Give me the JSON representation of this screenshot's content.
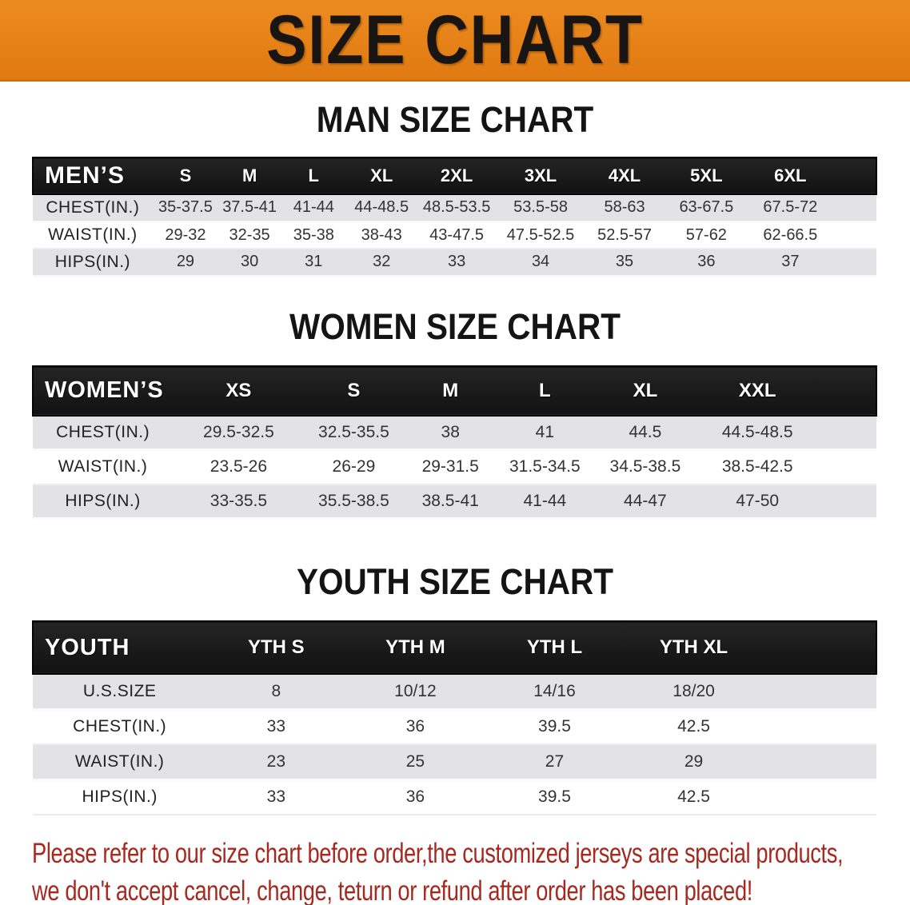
{
  "banner": {
    "title": "SIZE CHART"
  },
  "colors": {
    "banner_orange": "#e8821a",
    "header_band_black": "#1a1a1a",
    "row_stripe_gray": "#e3e3e5",
    "notice_red": "#a5291f"
  },
  "sections": [
    {
      "heading": "MAN SIZE CHART",
      "table": {
        "header_label": "MEN’S",
        "columns": [
          "S",
          "M",
          "L",
          "XL",
          "2XL",
          "3XL",
          "4XL",
          "5XL",
          "6XL"
        ],
        "rows": [
          {
            "label": "CHEST(IN.)",
            "values": [
              "35-37.5",
              "37.5-41",
              "41-44",
              "44-48.5",
              "48.5-53.5",
              "53.5-58",
              "58-63",
              "63-67.5",
              "67.5-72"
            ]
          },
          {
            "label": "WAIST(IN.)",
            "values": [
              "29-32",
              "32-35",
              "35-38",
              "38-43",
              "43-47.5",
              "47.5-52.5",
              "52.5-57",
              "57-62",
              "62-66.5"
            ]
          },
          {
            "label": "HIPS(IN.)",
            "values": [
              "29",
              "30",
              "31",
              "32",
              "33",
              "34",
              "35",
              "36",
              "37"
            ]
          }
        ]
      }
    },
    {
      "heading": "WOMEN SIZE CHART",
      "table": {
        "header_label": "WOMEN’S",
        "columns": [
          "XS",
          "S",
          "M",
          "L",
          "XL",
          "XXL"
        ],
        "rows": [
          {
            "label": "CHEST(IN.)",
            "values": [
              "29.5-32.5",
              "32.5-35.5",
              "38",
              "41",
              "44.5",
              "44.5-48.5"
            ]
          },
          {
            "label": "WAIST(IN.)",
            "values": [
              "23.5-26",
              "26-29",
              "29-31.5",
              "31.5-34.5",
              "34.5-38.5",
              "38.5-42.5"
            ]
          },
          {
            "label": "HIPS(IN.)",
            "values": [
              "33-35.5",
              "35.5-38.5",
              "38.5-41",
              "41-44",
              "44-47",
              "47-50"
            ]
          }
        ]
      }
    },
    {
      "heading": "YOUTH SIZE CHART",
      "table": {
        "header_label": "YOUTH",
        "columns": [
          "YTH S",
          "YTH M",
          "YTH L",
          "YTH XL"
        ],
        "rows": [
          {
            "label": "U.S.SIZE",
            "values": [
              "8",
              "10/12",
              "14/16",
              "18/20"
            ]
          },
          {
            "label": "CHEST(IN.)",
            "values": [
              "33",
              "36",
              "39.5",
              "42.5"
            ]
          },
          {
            "label": "WAIST(IN.)",
            "values": [
              "23",
              "25",
              "27",
              "29"
            ]
          },
          {
            "label": "HIPS(IN.)",
            "values": [
              "33",
              "36",
              "39.5",
              "42.5"
            ]
          }
        ]
      }
    }
  ],
  "footer": {
    "line1": "Please refer to our size chart before order,the customized jerseys are special products,",
    "line2": "we don't accept cancel, change, teturn or refund after order has been placed!"
  }
}
